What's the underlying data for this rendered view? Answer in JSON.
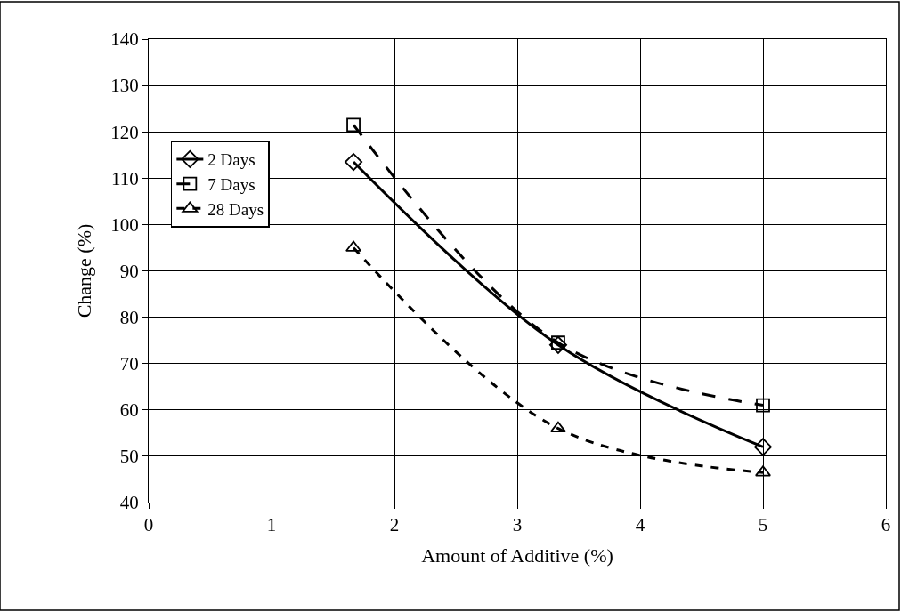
{
  "chart_data": {
    "type": "line",
    "xlabel": "Amount of Additive (%)",
    "ylabel": "Change (%)",
    "x": [
      1.667,
      3.333,
      5
    ],
    "series": [
      {
        "name": "2 Days",
        "color": "#000000",
        "values": [
          113.5,
          74,
          52
        ],
        "marker": "diamond",
        "line_style": "solid"
      },
      {
        "name": "7 Days",
        "color": "#000000",
        "values": [
          121.5,
          74.5,
          61
        ],
        "marker": "square",
        "line_style": "dashed"
      },
      {
        "name": "28 Days",
        "color": "#000000",
        "values": [
          95,
          56,
          46.5
        ],
        "marker": "triangle",
        "line_style": "dotted"
      }
    ],
    "xlim": [
      0,
      6
    ],
    "xticks": [
      0,
      1,
      2,
      3,
      4,
      5,
      6
    ],
    "ylim": [
      40,
      140
    ],
    "yticks": [
      40,
      50,
      60,
      70,
      80,
      90,
      100,
      110,
      120,
      130,
      140
    ],
    "grid": true,
    "legend": "top left"
  }
}
